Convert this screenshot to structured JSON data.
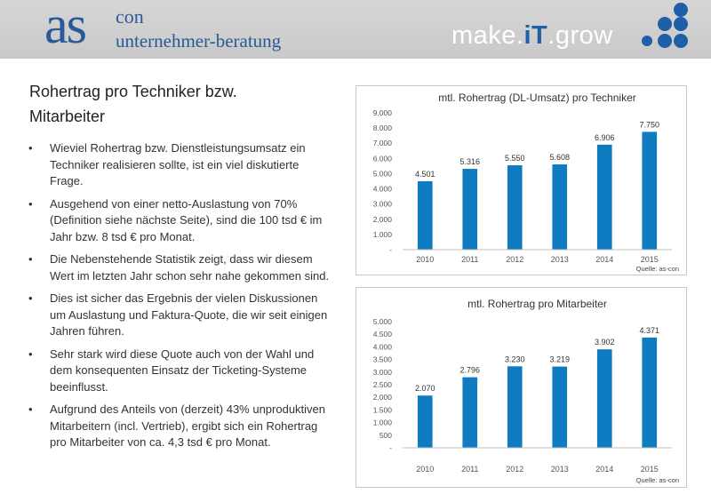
{
  "header": {
    "logo_main": "as",
    "logo_sup": "con",
    "logo_sub": "unternehmer-beratung",
    "slogan_a": "make.",
    "slogan_b": "iT",
    "slogan_c": ".grow",
    "colors": {
      "brand": "#2a5a95",
      "accent": "#1e5fa8",
      "bar": "#0f7cc1"
    }
  },
  "title": "Rohertrag pro Techniker bzw. Mitarbeiter",
  "bullets": [
    "Wieviel Rohertrag bzw. Dienstleistungsumsatz ein Techniker realisieren sollte, ist ein viel diskutierte Frage.",
    "Ausgehend von einer netto-Auslastung von 70% (Definition siehe nächste Seite), sind die 100 tsd € im Jahr bzw. 8 tsd € pro Monat.",
    "Die Nebenstehende Statistik zeigt, dass wir diesem Wert im letzten Jahr schon sehr nahe gekommen sind.",
    "Dies ist sicher das Ergebnis der vielen Diskussionen um Auslastung und Faktura-Quote, die wir seit einigen Jahren führen.",
    "Sehr stark wird diese Quote auch von der Wahl und dem konsequenten Einsatz der Ticketing-Systeme beeinflusst.",
    "Aufgrund des Anteils von (derzeit) 43% unproduktiven Mitarbeitern (incl. Vertrieb), ergibt sich ein Rohertrag pro Mitarbeiter von ca. 4,3 tsd € pro Monat."
  ],
  "chart_data": [
    {
      "type": "bar",
      "title": "mtl. Rohertrag (DL-Umsatz) pro Techniker",
      "categories": [
        "2010",
        "2011",
        "2012",
        "2013",
        "2014",
        "2015"
      ],
      "values": [
        4501,
        5316,
        5550,
        5608,
        6906,
        7750
      ],
      "value_labels": [
        "4.501",
        "5.316",
        "5.550",
        "5.608",
        "6.906",
        "7.750"
      ],
      "yticks": [
        "-",
        "1.000",
        "2.000",
        "3.000",
        "4.000",
        "5.000",
        "6.000",
        "7.000",
        "8.000",
        "9.000"
      ],
      "ylim": [
        0,
        9000
      ],
      "source": "Quelle: as-con",
      "grid": false
    },
    {
      "type": "bar",
      "title": "mtl. Rohertrag pro Mitarbeiter",
      "categories": [
        "2010",
        "2011",
        "2012",
        "2013",
        "2014",
        "2015"
      ],
      "values": [
        2070,
        2796,
        3230,
        3219,
        3902,
        4371
      ],
      "value_labels": [
        "2.070",
        "2.796",
        "3.230",
        "3.219",
        "3.902",
        "4.371"
      ],
      "yticks": [
        "-",
        "500",
        "1.000",
        "1.500",
        "2.000",
        "2.500",
        "3.000",
        "3.500",
        "4.000",
        "4.500",
        "5.000"
      ],
      "ylim": [
        0,
        5000
      ],
      "source": "Quelle: as-con",
      "grid": false
    }
  ]
}
